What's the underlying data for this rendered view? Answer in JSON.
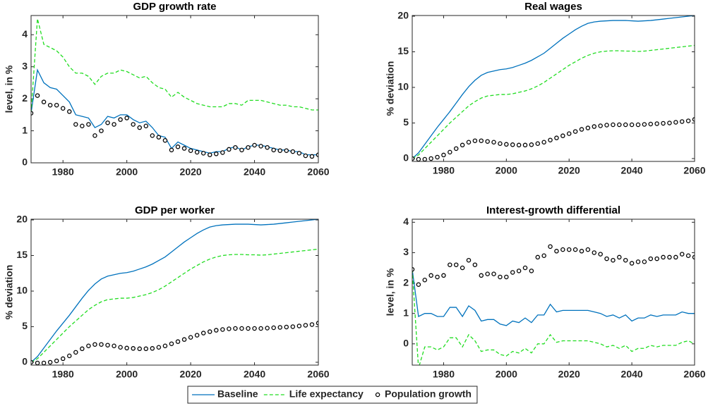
{
  "chart_data": [
    {
      "type": "line",
      "title": "GDP growth rate",
      "ylabel": "level, in %",
      "x": [
        1970,
        1972,
        1974,
        1976,
        1978,
        1980,
        1982,
        1984,
        1986,
        1988,
        1990,
        1992,
        1994,
        1996,
        1998,
        2000,
        2002,
        2004,
        2006,
        2008,
        2010,
        2012,
        2014,
        2016,
        2018,
        2020,
        2022,
        2024,
        2026,
        2028,
        2030,
        2032,
        2034,
        2036,
        2038,
        2040,
        2042,
        2044,
        2046,
        2048,
        2050,
        2052,
        2054,
        2056,
        2058,
        2060
      ],
      "xlim": [
        1970,
        2060
      ],
      "xticks": [
        1980,
        2000,
        2020,
        2040,
        2060
      ],
      "ylim": [
        0,
        4.6
      ],
      "yticks": [
        0,
        1,
        2,
        3,
        4
      ],
      "series": [
        {
          "name": "Baseline",
          "color": "#0072bd",
          "style": "solid",
          "values": [
            1.55,
            2.9,
            2.5,
            2.35,
            2.3,
            2.1,
            1.9,
            1.5,
            1.45,
            1.4,
            1.1,
            1.2,
            1.45,
            1.4,
            1.5,
            1.5,
            1.35,
            1.25,
            1.3,
            1.1,
            0.85,
            0.8,
            0.45,
            0.65,
            0.55,
            0.45,
            0.4,
            0.35,
            0.3,
            0.35,
            0.35,
            0.45,
            0.5,
            0.4,
            0.5,
            0.55,
            0.55,
            0.5,
            0.45,
            0.4,
            0.4,
            0.35,
            0.35,
            0.25,
            0.25,
            0.25
          ]
        },
        {
          "name": "Life expectancy",
          "color": "#22dd22",
          "style": "dashed",
          "values": [
            1.55,
            4.5,
            3.7,
            3.6,
            3.5,
            3.3,
            3.0,
            2.8,
            2.8,
            2.7,
            2.45,
            2.7,
            2.8,
            2.8,
            2.9,
            2.85,
            2.75,
            2.65,
            2.7,
            2.5,
            2.35,
            2.3,
            2.05,
            2.2,
            2.05,
            1.95,
            1.85,
            1.8,
            1.75,
            1.75,
            1.75,
            1.85,
            1.85,
            1.8,
            1.95,
            1.95,
            1.95,
            1.9,
            1.85,
            1.8,
            1.8,
            1.75,
            1.75,
            1.7,
            1.65,
            1.65
          ]
        },
        {
          "name": "Population growth",
          "color": "#000000",
          "style": "markers",
          "values": [
            1.55,
            2.1,
            1.9,
            1.8,
            1.8,
            1.7,
            1.6,
            1.2,
            1.15,
            1.2,
            0.85,
            1.0,
            1.25,
            1.2,
            1.35,
            1.4,
            1.2,
            1.1,
            1.15,
            0.85,
            0.8,
            0.7,
            0.4,
            0.5,
            0.45,
            0.38,
            0.33,
            0.3,
            0.25,
            0.28,
            0.32,
            0.42,
            0.48,
            0.4,
            0.48,
            0.55,
            0.52,
            0.48,
            0.4,
            0.38,
            0.38,
            0.35,
            0.3,
            0.22,
            0.2,
            0.25
          ]
        }
      ]
    },
    {
      "type": "line",
      "title": "Real wages",
      "ylabel": "% deviation",
      "x": [
        1970,
        1972,
        1974,
        1976,
        1978,
        1980,
        1982,
        1984,
        1986,
        1988,
        1990,
        1992,
        1994,
        1996,
        1998,
        2000,
        2002,
        2004,
        2006,
        2008,
        2010,
        2012,
        2014,
        2016,
        2018,
        2020,
        2022,
        2024,
        2026,
        2028,
        2030,
        2032,
        2034,
        2036,
        2038,
        2040,
        2042,
        2044,
        2046,
        2048,
        2050,
        2052,
        2054,
        2056,
        2058,
        2060
      ],
      "xlim": [
        1970,
        2060
      ],
      "xticks": [
        1980,
        2000,
        2020,
        2040,
        2060
      ],
      "ylim": [
        -0.4,
        20.1
      ],
      "yticks": [
        0,
        5,
        10,
        15,
        20
      ],
      "series": [
        {
          "name": "Baseline",
          "color": "#0072bd",
          "style": "solid",
          "values": [
            0,
            0.8,
            2,
            3.2,
            4.4,
            5.5,
            6.6,
            7.8,
            9,
            10.1,
            11,
            11.7,
            12.1,
            12.3,
            12.5,
            12.6,
            12.8,
            13.1,
            13.4,
            13.8,
            14.3,
            14.8,
            15.5,
            16.2,
            16.9,
            17.5,
            18.1,
            18.6,
            19,
            19.2,
            19.3,
            19.35,
            19.4,
            19.4,
            19.4,
            19.35,
            19.3,
            19.35,
            19.4,
            19.5,
            19.6,
            19.7,
            19.8,
            19.9,
            20,
            20.1
          ]
        },
        {
          "name": "Life expectancy",
          "color": "#22dd22",
          "style": "dashed",
          "values": [
            0,
            0.5,
            1.4,
            2.3,
            3.2,
            4.1,
            5,
            5.8,
            6.6,
            7.4,
            8,
            8.5,
            8.8,
            8.9,
            9,
            9,
            9.1,
            9.3,
            9.5,
            9.8,
            10.2,
            10.7,
            11.3,
            11.9,
            12.5,
            13.1,
            13.6,
            14.1,
            14.5,
            14.8,
            15,
            15.1,
            15.15,
            15.15,
            15.1,
            15.1,
            15.05,
            15.1,
            15.2,
            15.3,
            15.4,
            15.5,
            15.6,
            15.7,
            15.8,
            15.9
          ]
        },
        {
          "name": "Population growth",
          "color": "#000000",
          "style": "markers",
          "values": [
            0,
            -0.1,
            -0.1,
            0,
            0.2,
            0.5,
            0.9,
            1.4,
            1.9,
            2.3,
            2.5,
            2.5,
            2.4,
            2.3,
            2.1,
            2.0,
            1.95,
            1.9,
            1.9,
            1.95,
            2.1,
            2.3,
            2.6,
            2.9,
            3.2,
            3.5,
            3.8,
            4.1,
            4.3,
            4.5,
            4.6,
            4.7,
            4.75,
            4.75,
            4.75,
            4.75,
            4.75,
            4.8,
            4.85,
            4.9,
            4.95,
            5.0,
            5.1,
            5.2,
            5.3,
            5.5
          ]
        }
      ]
    },
    {
      "type": "line",
      "title": "GDP per worker",
      "ylabel": "% deviation",
      "x": [
        1970,
        1972,
        1974,
        1976,
        1978,
        1980,
        1982,
        1984,
        1986,
        1988,
        1990,
        1992,
        1994,
        1996,
        1998,
        2000,
        2002,
        2004,
        2006,
        2008,
        2010,
        2012,
        2014,
        2016,
        2018,
        2020,
        2022,
        2024,
        2026,
        2028,
        2030,
        2032,
        2034,
        2036,
        2038,
        2040,
        2042,
        2044,
        2046,
        2048,
        2050,
        2052,
        2054,
        2056,
        2058,
        2060
      ],
      "xlim": [
        1970,
        2060
      ],
      "xticks": [
        1980,
        2000,
        2020,
        2040,
        2060
      ],
      "ylim": [
        -0.4,
        20.1
      ],
      "yticks": [
        0,
        5,
        10,
        15,
        20
      ],
      "series": [
        {
          "name": "Baseline",
          "color": "#0072bd",
          "style": "solid",
          "values": [
            0,
            0.8,
            2,
            3.2,
            4.4,
            5.5,
            6.6,
            7.8,
            9,
            10.1,
            11,
            11.7,
            12.1,
            12.3,
            12.5,
            12.6,
            12.8,
            13.1,
            13.4,
            13.8,
            14.3,
            14.8,
            15.5,
            16.2,
            16.9,
            17.5,
            18.1,
            18.6,
            19,
            19.2,
            19.3,
            19.35,
            19.4,
            19.4,
            19.4,
            19.35,
            19.3,
            19.35,
            19.4,
            19.5,
            19.6,
            19.7,
            19.8,
            19.9,
            20,
            20.1
          ]
        },
        {
          "name": "Life expectancy",
          "color": "#22dd22",
          "style": "dashed",
          "values": [
            0,
            0.5,
            1.4,
            2.3,
            3.2,
            4.1,
            5,
            5.8,
            6.6,
            7.4,
            8,
            8.5,
            8.8,
            8.9,
            9,
            9,
            9.1,
            9.3,
            9.5,
            9.8,
            10.2,
            10.7,
            11.3,
            11.9,
            12.5,
            13.1,
            13.6,
            14.1,
            14.5,
            14.8,
            15,
            15.1,
            15.15,
            15.15,
            15.1,
            15.1,
            15.05,
            15.1,
            15.2,
            15.3,
            15.4,
            15.5,
            15.6,
            15.7,
            15.8,
            15.9
          ]
        },
        {
          "name": "Population growth",
          "color": "#000000",
          "style": "markers",
          "values": [
            0,
            -0.1,
            -0.1,
            0,
            0.2,
            0.5,
            0.9,
            1.4,
            1.9,
            2.3,
            2.5,
            2.5,
            2.4,
            2.3,
            2.1,
            2.0,
            1.95,
            1.9,
            1.9,
            1.95,
            2.1,
            2.3,
            2.6,
            2.9,
            3.2,
            3.5,
            3.8,
            4.1,
            4.3,
            4.5,
            4.6,
            4.7,
            4.75,
            4.75,
            4.75,
            4.75,
            4.75,
            4.8,
            4.85,
            4.9,
            4.95,
            5.0,
            5.1,
            5.2,
            5.3,
            5.5
          ]
        }
      ]
    },
    {
      "type": "line",
      "title": "Interest-growth differential",
      "ylabel": "level, in %",
      "x": [
        1970,
        1972,
        1974,
        1976,
        1978,
        1980,
        1982,
        1984,
        1986,
        1988,
        1990,
        1992,
        1994,
        1996,
        1998,
        2000,
        2002,
        2004,
        2006,
        2008,
        2010,
        2012,
        2014,
        2016,
        2018,
        2020,
        2022,
        2024,
        2026,
        2028,
        2030,
        2032,
        2034,
        2036,
        2038,
        2040,
        2042,
        2044,
        2046,
        2048,
        2050,
        2052,
        2054,
        2056,
        2058,
        2060
      ],
      "xlim": [
        1970,
        2060
      ],
      "xticks": [
        1980,
        2000,
        2020,
        2040,
        2060
      ],
      "ylim": [
        -0.7,
        4.1
      ],
      "yticks": [
        0,
        1,
        2,
        3,
        4
      ],
      "series": [
        {
          "name": "Baseline",
          "color": "#0072bd",
          "style": "solid",
          "values": [
            2.45,
            0.9,
            1.0,
            1.0,
            0.9,
            0.9,
            1.2,
            1.2,
            0.9,
            1.25,
            1.1,
            0.75,
            0.8,
            0.8,
            0.65,
            0.6,
            0.75,
            0.7,
            0.85,
            0.7,
            0.95,
            0.95,
            1.3,
            1.05,
            1.1,
            1.1,
            1.1,
            1.1,
            1.1,
            1.05,
            1.0,
            0.9,
            0.95,
            0.85,
            0.95,
            0.75,
            0.85,
            0.85,
            0.95,
            0.9,
            0.95,
            0.95,
            0.95,
            1.05,
            1.0,
            1.0
          ]
        },
        {
          "name": "Life expectancy",
          "color": "#22dd22",
          "style": "dashed",
          "values": [
            2.45,
            -0.8,
            -0.1,
            -0.1,
            -0.2,
            -0.1,
            0.2,
            0.2,
            -0.1,
            0.3,
            0.1,
            -0.25,
            -0.2,
            -0.2,
            -0.35,
            -0.4,
            -0.25,
            -0.3,
            -0.15,
            -0.3,
            0.0,
            0.0,
            0.3,
            0.05,
            0.1,
            0.1,
            0.1,
            0.1,
            0.1,
            0.05,
            0.0,
            -0.1,
            -0.05,
            -0.15,
            -0.05,
            -0.25,
            -0.15,
            -0.15,
            -0.05,
            -0.1,
            -0.05,
            -0.05,
            -0.05,
            0.05,
            0.1,
            0.0
          ]
        },
        {
          "name": "Population growth",
          "color": "#000000",
          "style": "markers",
          "values": [
            2.45,
            1.95,
            2.1,
            2.25,
            2.2,
            2.25,
            2.6,
            2.6,
            2.5,
            2.75,
            2.6,
            2.25,
            2.3,
            2.3,
            2.2,
            2.2,
            2.35,
            2.4,
            2.5,
            2.4,
            2.85,
            2.9,
            3.2,
            3.05,
            3.1,
            3.1,
            3.1,
            3.05,
            3.1,
            3.0,
            2.95,
            2.8,
            2.75,
            2.85,
            2.75,
            2.65,
            2.7,
            2.7,
            2.8,
            2.8,
            2.85,
            2.85,
            2.85,
            2.95,
            2.9,
            2.85
          ]
        }
      ]
    }
  ]
}
